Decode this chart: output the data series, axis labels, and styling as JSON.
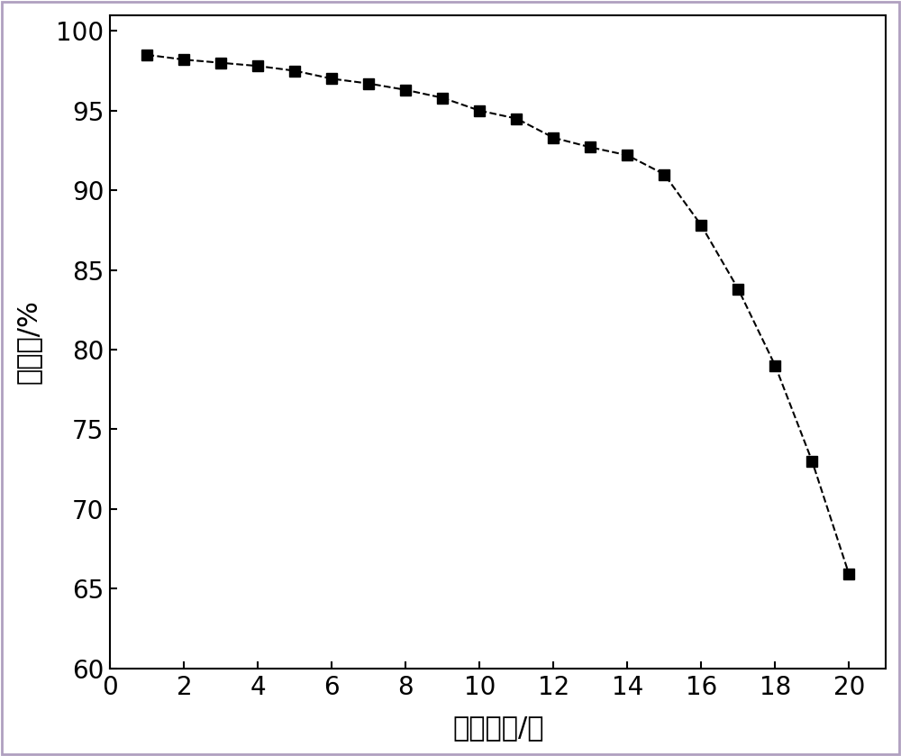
{
  "x": [
    1,
    2,
    3,
    4,
    5,
    6,
    7,
    8,
    9,
    10,
    11,
    12,
    13,
    14,
    15,
    16,
    17,
    18,
    19,
    20
  ],
  "y": [
    98.5,
    98.2,
    98.0,
    97.8,
    97.5,
    97.0,
    96.7,
    96.3,
    95.8,
    95.0,
    94.5,
    93.3,
    92.7,
    92.2,
    91.0,
    87.8,
    83.8,
    79.0,
    73.0,
    65.9
  ],
  "xlabel": "重复次数/次",
  "ylabel": "转化率/%",
  "xlim": [
    0,
    21
  ],
  "ylim": [
    60,
    101
  ],
  "xticks": [
    0,
    2,
    4,
    6,
    8,
    10,
    12,
    14,
    16,
    18,
    20
  ],
  "yticks": [
    60,
    65,
    70,
    75,
    80,
    85,
    90,
    95,
    100
  ],
  "line_color": "#000000",
  "marker_color": "#000000",
  "marker": "s",
  "marker_size": 9,
  "line_width": 1.5,
  "line_style": "--",
  "bg_color": "#ffffff",
  "border_color": "#b0a0c0",
  "xlabel_fontsize": 22,
  "ylabel_fontsize": 22,
  "tick_fontsize": 20
}
